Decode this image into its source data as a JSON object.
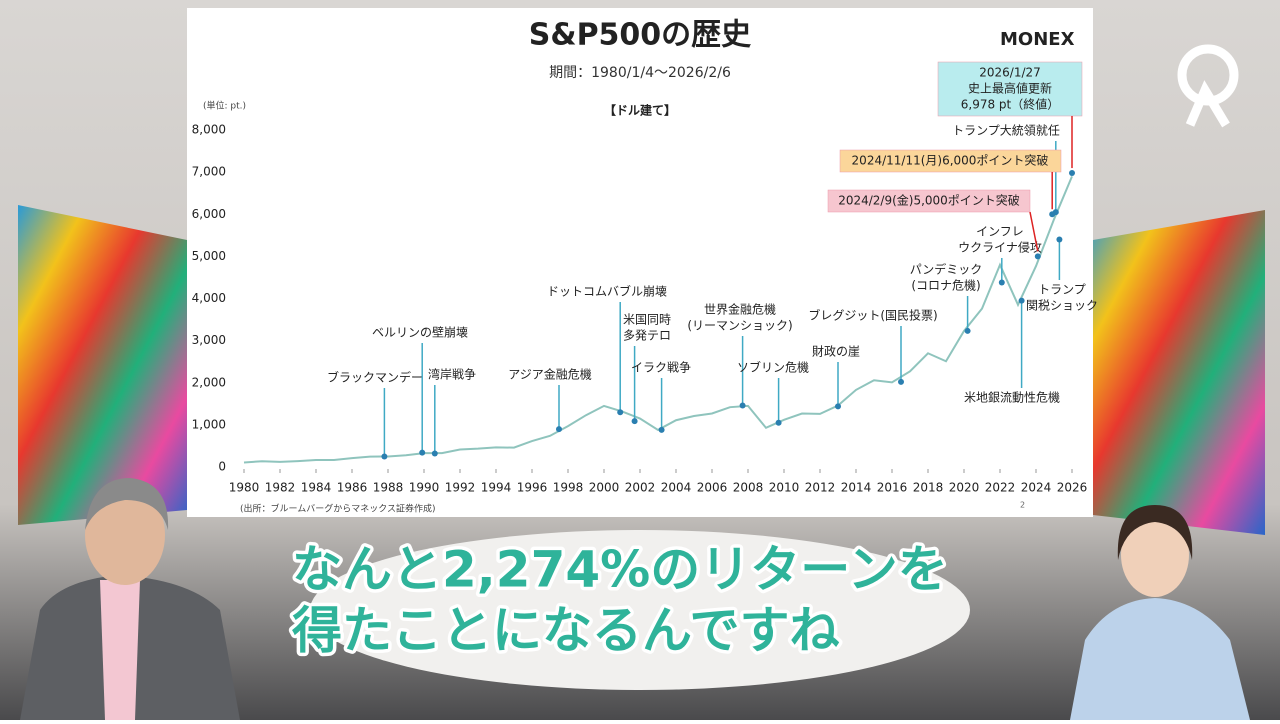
{
  "chart_data": {
    "type": "line",
    "title": "S&P500の歴史",
    "subtitle": "期間：1980/1/4〜2026/2/6",
    "currency_label": "【ドル建て】",
    "unit_label": "(単位: pt.)",
    "source": "(出所：ブルームバーグからマネックス証券作成)",
    "page_number": "2",
    "x": [
      1980,
      1981,
      1982,
      1983,
      1984,
      1985,
      1986,
      1987,
      1988,
      1989,
      1990,
      1991,
      1992,
      1993,
      1994,
      1995,
      1996,
      1997,
      1998,
      1999,
      2000,
      2001,
      2002,
      2003,
      2004,
      2005,
      2006,
      2007,
      2008,
      2009,
      2010,
      2011,
      2012,
      2013,
      2014,
      2015,
      2016,
      2017,
      2018,
      2019,
      2020,
      2021,
      2022,
      2023,
      2024,
      2025,
      2026
    ],
    "series": [
      {
        "name": "S&P500",
        "color": "#8fc4bd",
        "values": [
          108,
          136,
          122,
          140,
          165,
          167,
          210,
          245,
          250,
          280,
          330,
          330,
          415,
          435,
          465,
          460,
          615,
          740,
          970,
          1230,
          1450,
          1320,
          1150,
          880,
          1110,
          1210,
          1270,
          1420,
          1450,
          930,
          1120,
          1270,
          1260,
          1460,
          1830,
          2060,
          2010,
          2270,
          2700,
          2510,
          3230,
          3760,
          4800,
          3850,
          4770,
          5880,
          6900
        ]
      }
    ],
    "xlim": [
      1980,
      2026
    ],
    "xticks": [
      1980,
      1982,
      1984,
      1986,
      1988,
      1990,
      1992,
      1994,
      1996,
      1998,
      2000,
      2002,
      2004,
      2006,
      2008,
      2010,
      2012,
      2014,
      2016,
      2018,
      2020,
      2022,
      2024,
      2026
    ],
    "ylim": [
      0,
      8000
    ],
    "yticks": [
      0,
      {
        "value": 1000,
        "label": "1,000"
      },
      {
        "value": 2000,
        "label": "2,000"
      },
      {
        "value": 3000,
        "label": "3,000"
      },
      {
        "value": 4000,
        "label": "4,000"
      },
      {
        "value": 5000,
        "label": "5,000"
      },
      {
        "value": 6000,
        "label": "6,000"
      },
      {
        "value": 7000,
        "label": "7,000"
      },
      {
        "value": 8000,
        "label": "8,000"
      }
    ],
    "grid": false,
    "annotations": [
      {
        "label": [
          "ブラックマンデー"
        ],
        "x": 1987.8,
        "y": 250
      },
      {
        "label": [
          "ベルリンの壁崩壊"
        ],
        "x": 1989.9,
        "y": 340
      },
      {
        "label": [
          "湾岸戦争"
        ],
        "x": 1990.6,
        "y": 320
      },
      {
        "label": [
          "アジア金融危機"
        ],
        "x": 1997.5,
        "y": 900
      },
      {
        "label": [
          "ドットコムバブル崩壊"
        ],
        "x": 2000.9,
        "y": 1300
      },
      {
        "label": [
          "米国同時",
          "多発テロ"
        ],
        "x": 2001.7,
        "y": 1090
      },
      {
        "label": [
          "イラク戦争"
        ],
        "x": 2003.2,
        "y": 880
      },
      {
        "label": [
          "世界金融危機",
          "(リーマンショック)"
        ],
        "x": 2007.7,
        "y": 1460
      },
      {
        "label": [
          "ソブリン危機"
        ],
        "x": 2009.7,
        "y": 1050
      },
      {
        "label": [
          "財政の崖"
        ],
        "x": 2013.0,
        "y": 1440
      },
      {
        "label": [
          "ブレグジット(国民投票)"
        ],
        "x": 2016.5,
        "y": 2020
      },
      {
        "label": [
          "パンデミック",
          "(コロナ危機)"
        ],
        "x": 2020.2,
        "y": 3230
      },
      {
        "label": [
          "インフレ",
          "ウクライナ侵攻"
        ],
        "x": 2022.1,
        "y": 4380
      },
      {
        "label": [
          "米地銀流動性危機"
        ],
        "x": 2023.2,
        "y": 3950
      },
      {
        "label": [
          "トランプ",
          "関税ショック"
        ],
        "x": 2025.3,
        "y": 5400
      },
      {
        "label": [
          "トランプ大統領就任"
        ],
        "x": 2025.1,
        "y": 6050
      },
      {
        "label": [
          "2024/2/9(金)5,000ポイント突破"
        ],
        "x": 2024.1,
        "y": 5000,
        "color": "#f6c6cf"
      },
      {
        "label": [
          "2024/11/11(月)6,000ポイント突破"
        ],
        "x": 2024.9,
        "y": 6000,
        "color": "#fbd69a"
      },
      {
        "label": [
          "2026/1/27",
          "史上最高値更新",
          "6,978 pt（終値）"
        ],
        "x": 2026.0,
        "y": 6978,
        "color": "#b9ecee"
      }
    ]
  },
  "logo": "MONEX",
  "caption": [
    "なんと2,274%のリターンを",
    "得たことになるんですね"
  ]
}
